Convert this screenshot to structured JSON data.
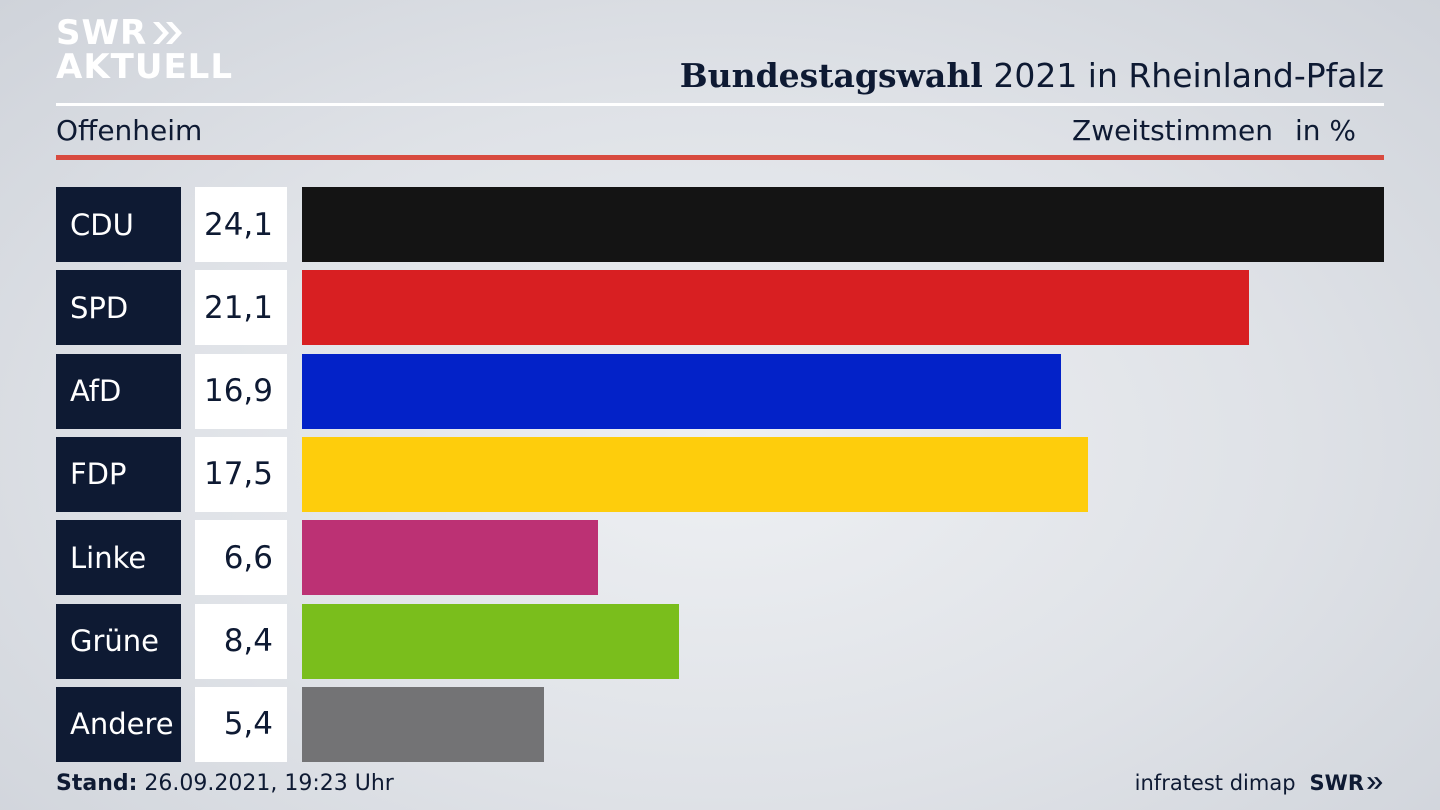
{
  "logo": {
    "line1": "SWR",
    "line2": "AKTUELL"
  },
  "header": {
    "title_bold": "Bundestagswahl",
    "title_rest": " 2021 in Rheinland-Pfalz",
    "place": "Offenheim",
    "metric": "Zweitstimmen",
    "unit": "in %"
  },
  "chart_data": {
    "type": "bar",
    "orientation": "horizontal",
    "categories": [
      "CDU",
      "SPD",
      "AfD",
      "FDP",
      "Linke",
      "Grüne",
      "Andere"
    ],
    "values": [
      24.1,
      21.1,
      16.9,
      17.5,
      6.6,
      8.4,
      5.4
    ],
    "labels": [
      "24,1",
      "21,1",
      "16,9",
      "17,5",
      "6,6",
      "8,4",
      "5,4"
    ],
    "colors": [
      "#141414",
      "#d81f22",
      "#0322c8",
      "#fecd0c",
      "#bc3174",
      "#7abe1c",
      "#737375"
    ],
    "xlim": [
      0,
      24.1
    ],
    "grid": false
  },
  "footer": {
    "stand_label": "Stand:",
    "stand_value": " 26.09.2021, 19:23 Uhr",
    "source": "infratest dimap",
    "brand": "SWR"
  },
  "colors": {
    "navy": "#0e1a33",
    "accent_red": "#d84a3f"
  }
}
